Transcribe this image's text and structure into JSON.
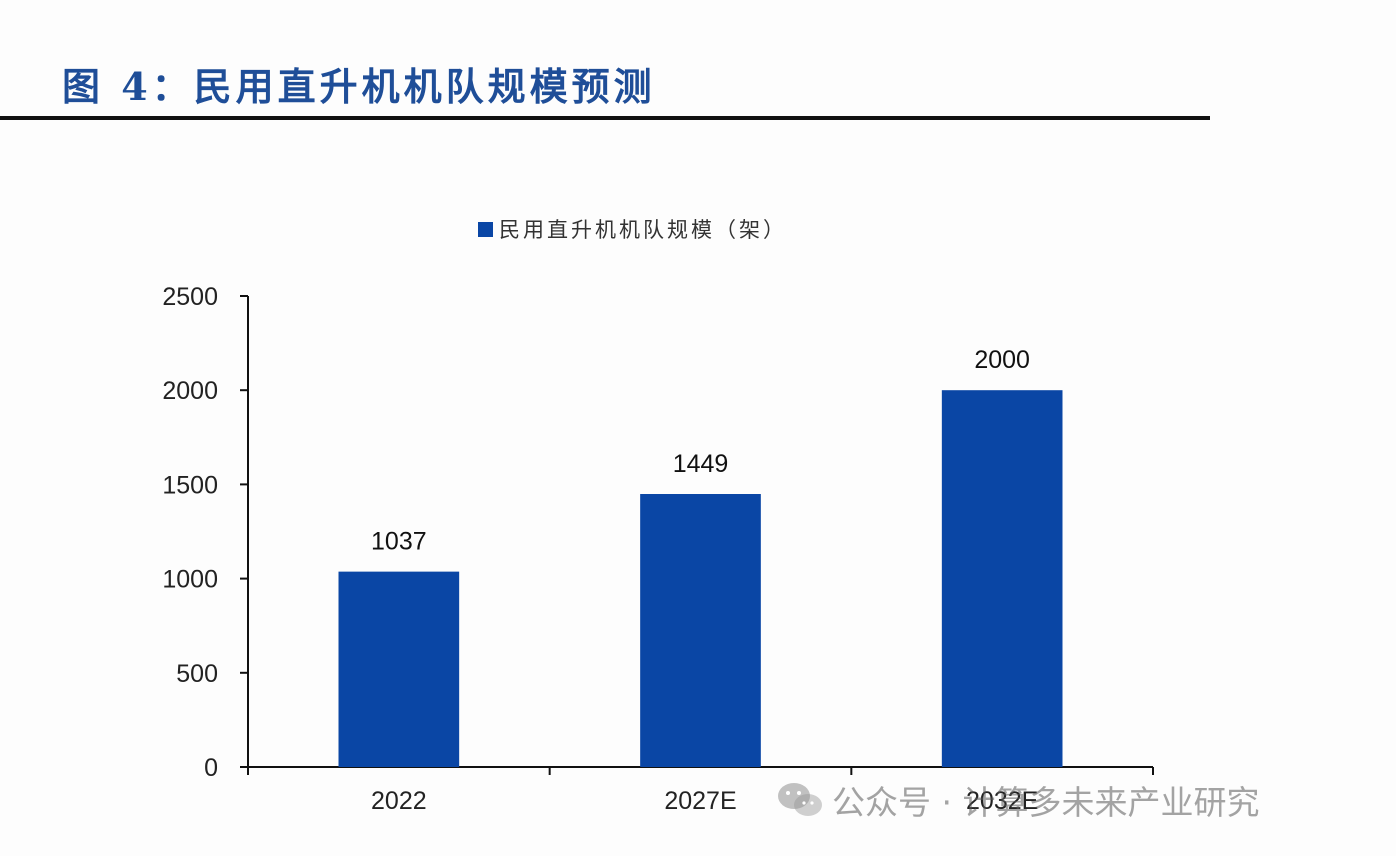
{
  "figure": {
    "title": "图 4：民用直升机机队规模预测"
  },
  "watermark": {
    "text": "公众号 · 计算多未来产业研究",
    "icon": "wechat-icon"
  },
  "colors": {
    "title": "#1f4e98",
    "bar": "#0a46a5"
  },
  "chart_data": {
    "type": "bar",
    "categories": [
      "2022",
      "2027E",
      "2032E"
    ],
    "series": [
      {
        "name": "民用直升机机队规模（架）",
        "values": [
          1037,
          1449,
          2000
        ]
      }
    ],
    "data_labels": [
      "1037",
      "1449",
      "2000"
    ],
    "y_ticks": [
      "0",
      "500",
      "1000",
      "1500",
      "2000",
      "2500"
    ],
    "ylim": [
      0,
      2500
    ],
    "legend_position": "top-center",
    "grid": false
  }
}
